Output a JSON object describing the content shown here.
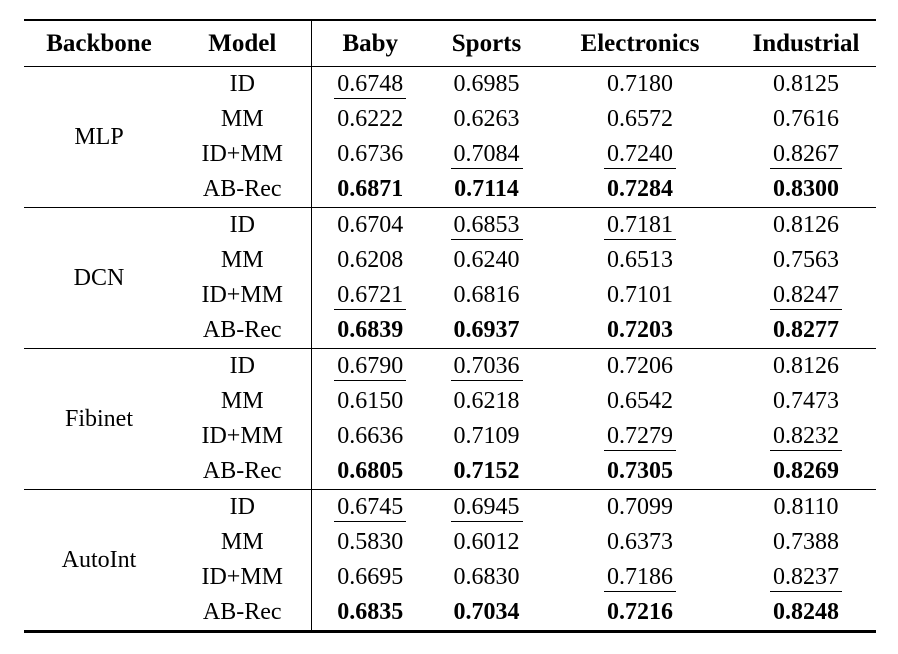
{
  "colors": {
    "background": "#ffffff",
    "text": "#000000",
    "rule": "#000000"
  },
  "table": {
    "columns": [
      "Backbone",
      "Model",
      "Baby",
      "Sports",
      "Electronics",
      "Industrial"
    ],
    "sections": [
      {
        "backbone": "MLP",
        "rows": [
          {
            "model": "ID",
            "values": [
              "0.6748",
              "0.6985",
              "0.7180",
              "0.8125"
            ],
            "underline": [
              true,
              false,
              false,
              false
            ],
            "bold": false
          },
          {
            "model": "MM",
            "values": [
              "0.6222",
              "0.6263",
              "0.6572",
              "0.7616"
            ],
            "underline": [
              false,
              false,
              false,
              false
            ],
            "bold": false
          },
          {
            "model": "ID+MM",
            "values": [
              "0.6736",
              "0.7084",
              "0.7240",
              "0.8267"
            ],
            "underline": [
              false,
              true,
              true,
              true
            ],
            "bold": false
          },
          {
            "model": "AB-Rec",
            "values": [
              "0.6871",
              "0.7114",
              "0.7284",
              "0.8300"
            ],
            "underline": [
              false,
              false,
              false,
              false
            ],
            "bold": true
          }
        ]
      },
      {
        "backbone": "DCN",
        "rows": [
          {
            "model": "ID",
            "values": [
              "0.6704",
              "0.6853",
              "0.7181",
              "0.8126"
            ],
            "underline": [
              false,
              true,
              true,
              false
            ],
            "bold": false
          },
          {
            "model": "MM",
            "values": [
              "0.6208",
              "0.6240",
              "0.6513",
              "0.7563"
            ],
            "underline": [
              false,
              false,
              false,
              false
            ],
            "bold": false
          },
          {
            "model": "ID+MM",
            "values": [
              "0.6721",
              "0.6816",
              "0.7101",
              "0.8247"
            ],
            "underline": [
              true,
              false,
              false,
              true
            ],
            "bold": false
          },
          {
            "model": "AB-Rec",
            "values": [
              "0.6839",
              "0.6937",
              "0.7203",
              "0.8277"
            ],
            "underline": [
              false,
              false,
              false,
              false
            ],
            "bold": true
          }
        ]
      },
      {
        "backbone": "Fibinet",
        "rows": [
          {
            "model": "ID",
            "values": [
              "0.6790",
              "0.7036",
              "0.7206",
              "0.8126"
            ],
            "underline": [
              true,
              true,
              false,
              false
            ],
            "bold": false
          },
          {
            "model": "MM",
            "values": [
              "0.6150",
              "0.6218",
              "0.6542",
              "0.7473"
            ],
            "underline": [
              false,
              false,
              false,
              false
            ],
            "bold": false
          },
          {
            "model": "ID+MM",
            "values": [
              "0.6636",
              "0.7109",
              "0.7279",
              "0.8232"
            ],
            "underline": [
              false,
              false,
              true,
              true
            ],
            "bold": false
          },
          {
            "model": "AB-Rec",
            "values": [
              "0.6805",
              "0.7152",
              "0.7305",
              "0.8269"
            ],
            "underline": [
              false,
              false,
              false,
              false
            ],
            "bold": true
          }
        ]
      },
      {
        "backbone": "AutoInt",
        "rows": [
          {
            "model": "ID",
            "values": [
              "0.6745",
              "0.6945",
              "0.7099",
              "0.8110"
            ],
            "underline": [
              true,
              true,
              false,
              false
            ],
            "bold": false
          },
          {
            "model": "MM",
            "values": [
              "0.5830",
              "0.6012",
              "0.6373",
              "0.7388"
            ],
            "underline": [
              false,
              false,
              false,
              false
            ],
            "bold": false
          },
          {
            "model": "ID+MM",
            "values": [
              "0.6695",
              "0.6830",
              "0.7186",
              "0.8237"
            ],
            "underline": [
              false,
              false,
              true,
              true
            ],
            "bold": false
          },
          {
            "model": "AB-Rec",
            "values": [
              "0.6835",
              "0.7034",
              "0.7216",
              "0.8248"
            ],
            "underline": [
              false,
              false,
              false,
              false
            ],
            "bold": true
          }
        ]
      }
    ]
  }
}
